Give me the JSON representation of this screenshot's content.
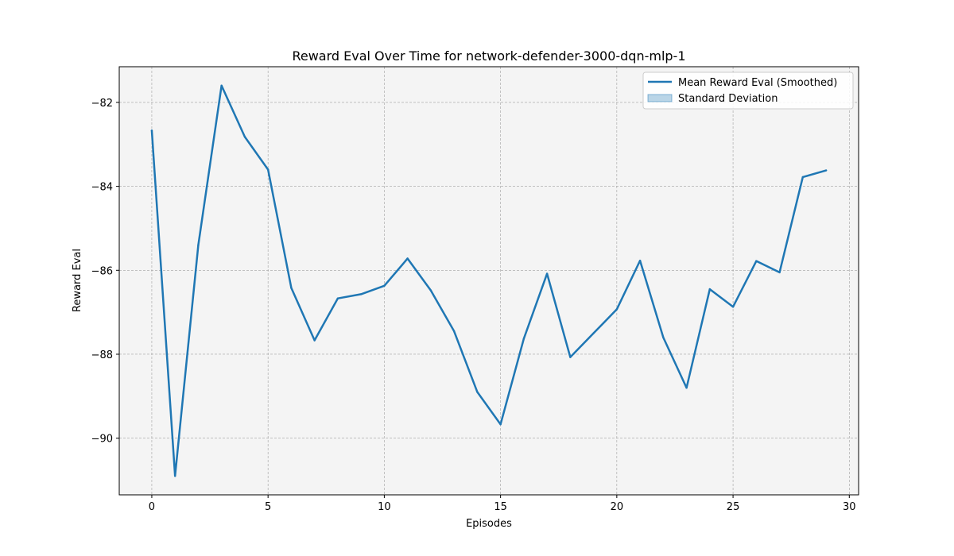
{
  "chart_data": {
    "type": "line",
    "title": "Reward Eval Over Time for network-defender-3000-dqn-mlp-1",
    "xlabel": "Episodes",
    "ylabel": "Reward Eval",
    "xlim": [
      -1.4,
      30.4
    ],
    "ylim": [
      -91.35,
      -81.15
    ],
    "xticks": [
      0,
      5,
      10,
      15,
      20,
      25,
      30
    ],
    "yticks": [
      -90,
      -88,
      -86,
      -84,
      -82
    ],
    "grid": true,
    "legend_position": "top-right",
    "legend": [
      "Mean Reward Eval (Smoothed)",
      "Standard Deviation"
    ],
    "series": [
      {
        "name": "Mean Reward Eval (Smoothed)",
        "color": "#1f77b4",
        "x": [
          0,
          1,
          2,
          3,
          4,
          5,
          6,
          7,
          8,
          9,
          10,
          11,
          12,
          13,
          14,
          15,
          16,
          17,
          18,
          19,
          20,
          21,
          22,
          23,
          24,
          25,
          26,
          27,
          28,
          29
        ],
        "y": [
          -82.67,
          -90.9,
          -85.4,
          -81.6,
          -82.82,
          -83.6,
          -86.42,
          -87.67,
          -86.67,
          -86.57,
          -86.37,
          -85.72,
          -86.48,
          -87.45,
          -88.9,
          -89.67,
          -87.63,
          -86.08,
          -88.07,
          -87.5,
          -86.93,
          -85.77,
          -87.6,
          -88.8,
          -86.45,
          -86.87,
          -85.78,
          -86.05,
          -83.78,
          -83.62
        ]
      }
    ],
    "band": {
      "name": "Standard Deviation",
      "color": "#1f77b4",
      "opacity": 0.3
    },
    "colors": {
      "plot_background": "#f4f4f4",
      "grid": "#a0a0a0"
    }
  }
}
